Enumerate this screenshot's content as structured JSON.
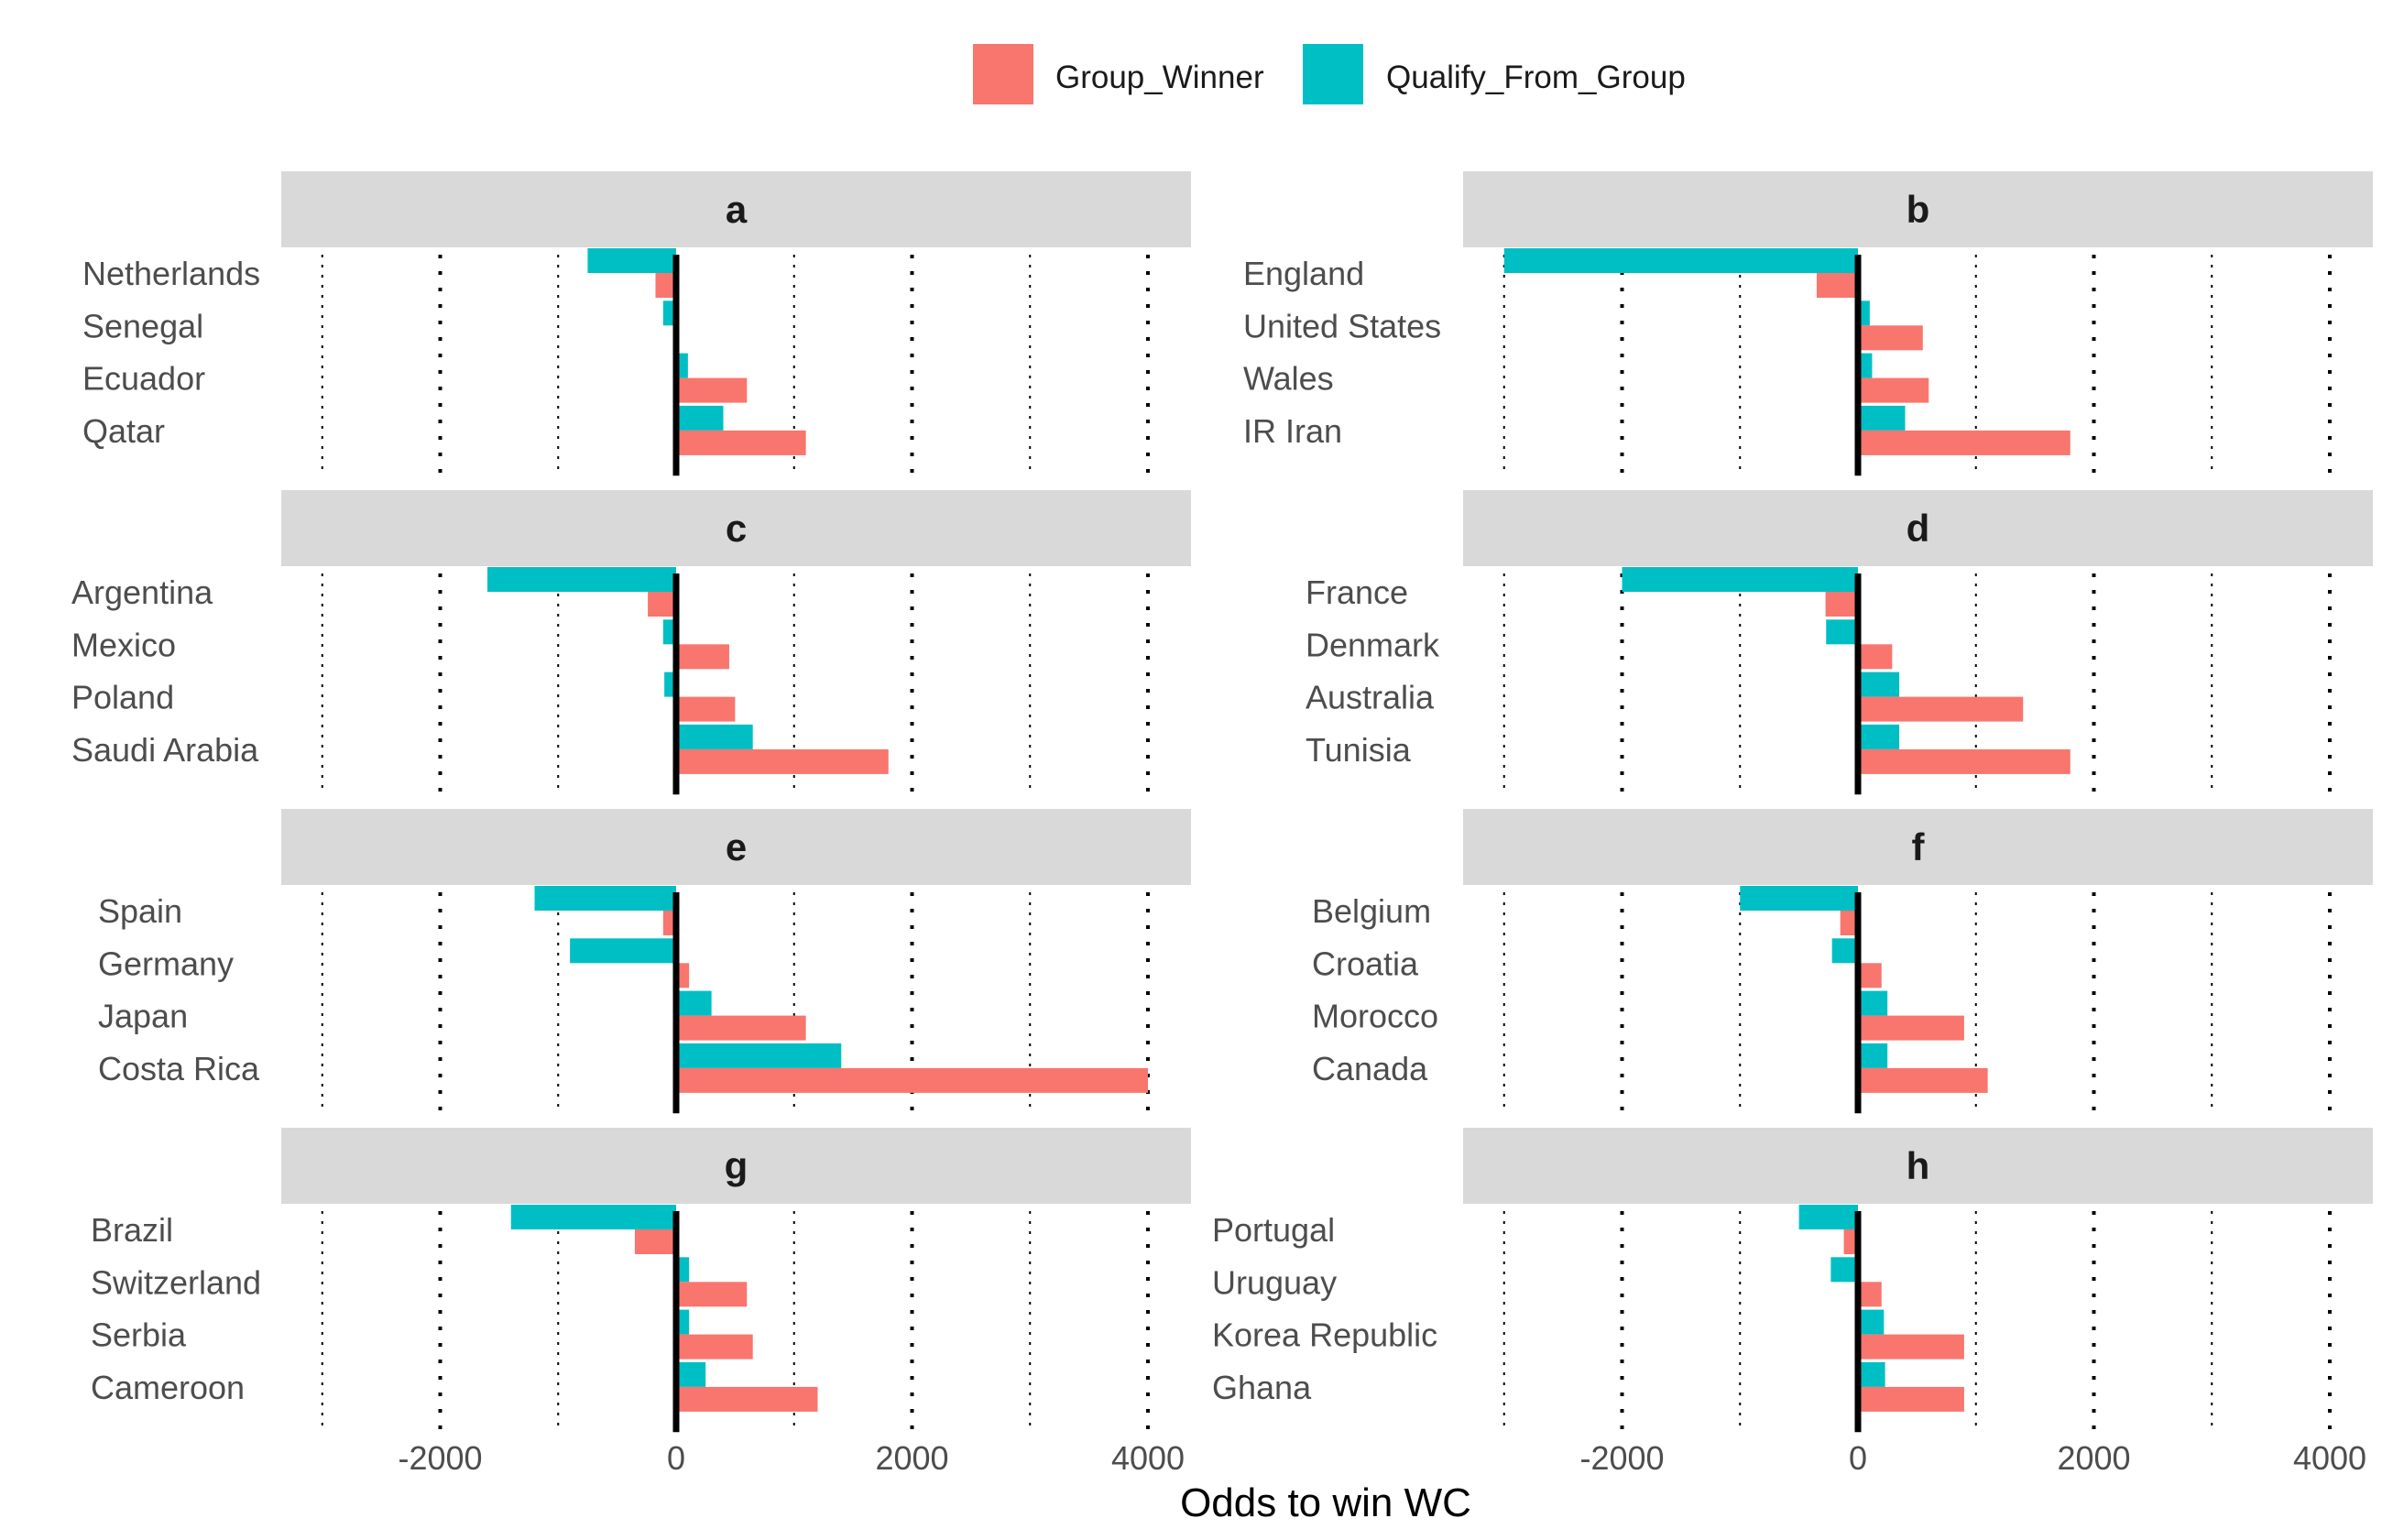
{
  "chart_data": {
    "type": "bar",
    "orientation": "horizontal",
    "xlabel": "Odds to win WC",
    "xlim": [
      -3350,
      4350
    ],
    "x_ticks": [
      -2000,
      0,
      2000,
      4000
    ],
    "x_tick_labels": [
      "-2000",
      "0",
      "2000",
      "4000"
    ],
    "x_gridlines": [
      -3000,
      -2000,
      -1000,
      1000,
      2000,
      3000,
      4000
    ],
    "legend": {
      "position": "top",
      "entries": [
        {
          "key": "Group_Winner",
          "label": "Group_Winner",
          "color": "#F8766D"
        },
        {
          "key": "Qualify_From_Group",
          "label": "Qualify_From_Group",
          "color": "#00BFC4"
        }
      ]
    },
    "panels": [
      {
        "label": "a",
        "teams": [
          {
            "name": "Netherlands",
            "Group_Winner": -175,
            "Qualify_From_Group": -750
          },
          {
            "name": "Senegal",
            "Group_Winner": 20,
            "Qualify_From_Group": -110
          },
          {
            "name": "Ecuador",
            "Group_Winner": 600,
            "Qualify_From_Group": 100
          },
          {
            "name": "Qatar",
            "Group_Winner": 1100,
            "Qualify_From_Group": 400
          }
        ]
      },
      {
        "label": "b",
        "teams": [
          {
            "name": "England",
            "Group_Winner": -350,
            "Qualify_From_Group": -3000
          },
          {
            "name": "United States",
            "Group_Winner": 550,
            "Qualify_From_Group": 100
          },
          {
            "name": "Wales",
            "Group_Winner": 600,
            "Qualify_From_Group": 120
          },
          {
            "name": "IR Iran",
            "Group_Winner": 1800,
            "Qualify_From_Group": 400
          }
        ]
      },
      {
        "label": "c",
        "teams": [
          {
            "name": "Argentina",
            "Group_Winner": -240,
            "Qualify_From_Group": -1600
          },
          {
            "name": "Mexico",
            "Group_Winner": 450,
            "Qualify_From_Group": -110
          },
          {
            "name": "Poland",
            "Group_Winner": 500,
            "Qualify_From_Group": -100
          },
          {
            "name": "Saudi Arabia",
            "Group_Winner": 1800,
            "Qualify_From_Group": 650
          }
        ]
      },
      {
        "label": "d",
        "teams": [
          {
            "name": "France",
            "Group_Winner": -275,
            "Qualify_From_Group": -2000
          },
          {
            "name": "Denmark",
            "Group_Winner": 290,
            "Qualify_From_Group": -270
          },
          {
            "name": "Australia",
            "Group_Winner": 1400,
            "Qualify_From_Group": 350
          },
          {
            "name": "Tunisia",
            "Group_Winner": 1800,
            "Qualify_From_Group": 350
          }
        ]
      },
      {
        "label": "e",
        "teams": [
          {
            "name": "Spain",
            "Group_Winner": -110,
            "Qualify_From_Group": -1200
          },
          {
            "name": "Germany",
            "Group_Winner": 110,
            "Qualify_From_Group": -900
          },
          {
            "name": "Japan",
            "Group_Winner": 1100,
            "Qualify_From_Group": 300
          },
          {
            "name": "Costa Rica",
            "Group_Winner": 4000,
            "Qualify_From_Group": 1400
          }
        ]
      },
      {
        "label": "f",
        "teams": [
          {
            "name": "Belgium",
            "Group_Winner": -150,
            "Qualify_From_Group": -1000
          },
          {
            "name": "Croatia",
            "Group_Winner": 200,
            "Qualify_From_Group": -220
          },
          {
            "name": "Morocco",
            "Group_Winner": 900,
            "Qualify_From_Group": 250
          },
          {
            "name": "Canada",
            "Group_Winner": 1100,
            "Qualify_From_Group": 250
          }
        ]
      },
      {
        "label": "g",
        "teams": [
          {
            "name": "Brazil",
            "Group_Winner": -350,
            "Qualify_From_Group": -1400
          },
          {
            "name": "Switzerland",
            "Group_Winner": 600,
            "Qualify_From_Group": 110
          },
          {
            "name": "Serbia",
            "Group_Winner": 650,
            "Qualify_From_Group": 110
          },
          {
            "name": "Cameroon",
            "Group_Winner": 1200,
            "Qualify_From_Group": 250
          }
        ]
      },
      {
        "label": "h",
        "teams": [
          {
            "name": "Portugal",
            "Group_Winner": -120,
            "Qualify_From_Group": -500
          },
          {
            "name": "Uruguay",
            "Group_Winner": 200,
            "Qualify_From_Group": -230
          },
          {
            "name": "Korea Republic",
            "Group_Winner": 900,
            "Qualify_From_Group": 220
          },
          {
            "name": "Ghana",
            "Group_Winner": 900,
            "Qualify_From_Group": 230
          }
        ]
      }
    ]
  }
}
